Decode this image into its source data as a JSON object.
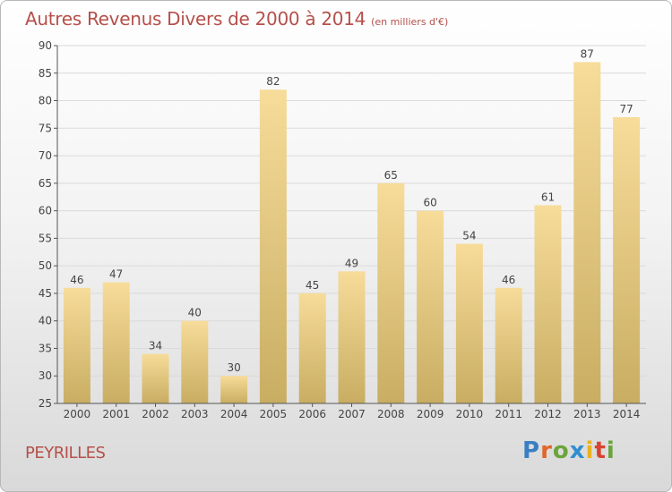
{
  "header": {
    "title": "Autres Revenus Divers de 2000 à 2014",
    "subtitle": "(en milliers d'€)"
  },
  "footer": {
    "commune": "PEYRILLES",
    "brand_letters": [
      {
        "ch": "P",
        "color": "#3a7fc4"
      },
      {
        "ch": "r",
        "color": "#e0662a"
      },
      {
        "ch": "o",
        "color": "#6aa53a"
      },
      {
        "ch": "x",
        "color": "#2f8fd0"
      },
      {
        "ch": "i",
        "color": "#e9b21f"
      },
      {
        "ch": "t",
        "color": "#d6442f"
      },
      {
        "ch": "i",
        "color": "#6aa53a"
      }
    ]
  },
  "colors": {
    "bar_top": "#f7dc9a",
    "bar_bottom": "#c8ad62",
    "grid": "#dadada",
    "axis": "#555555",
    "text": "#444444"
  },
  "chart_data": {
    "type": "bar",
    "categories": [
      "2000",
      "2001",
      "2002",
      "2003",
      "2004",
      "2005",
      "2006",
      "2007",
      "2008",
      "2009",
      "2010",
      "2011",
      "2012",
      "2013",
      "2014"
    ],
    "values": [
      46,
      47,
      34,
      40,
      30,
      82,
      45,
      49,
      65,
      60,
      54,
      46,
      61,
      87,
      77
    ],
    "title": "Autres Revenus Divers de 2000 à 2014",
    "ylim": [
      25,
      90
    ],
    "yticks": [
      25,
      30,
      35,
      40,
      45,
      50,
      55,
      60,
      65,
      70,
      75,
      80,
      85,
      90
    ],
    "grid": true,
    "data_labels": true
  }
}
